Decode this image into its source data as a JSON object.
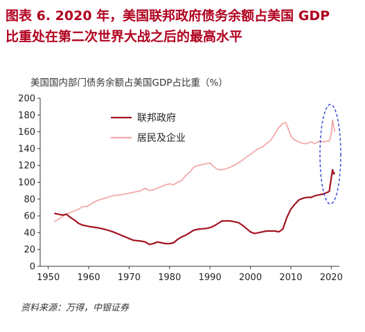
{
  "header": {
    "title_line1": "图表 6.  2020 年，美国联邦政府债务余额占美国 GDP",
    "title_line2": "比重处在第二次世界大战之后的最高水平"
  },
  "footer": {
    "source": "资料来源：万得，中银证券"
  },
  "colors": {
    "title": "#b0001e",
    "federal": "#a31020",
    "households": "#f2a8a8",
    "highlight": "#2f3fd4"
  },
  "chart_data": {
    "type": "line",
    "title": "美国国内部门债务余额占美国GDP占比重（%）",
    "xlabel": "",
    "ylabel": "",
    "xlim": [
      1948,
      2022
    ],
    "ylim": [
      0,
      200
    ],
    "x_ticks": [
      1950,
      1960,
      1970,
      1980,
      1990,
      2000,
      2010,
      2020
    ],
    "y_ticks": [
      0,
      20,
      40,
      60,
      80,
      100,
      120,
      140,
      160,
      180,
      200
    ],
    "grid": false,
    "legend_position": "top-left",
    "annotation": "dashed ellipse highlighting 2020",
    "series": [
      {
        "name": "联邦政府",
        "color": "#a31020",
        "points": [
          [
            1951.5,
            63
          ],
          [
            1952.5,
            62
          ],
          [
            1953.5,
            61
          ],
          [
            1954.5,
            62
          ],
          [
            1955.5,
            58
          ],
          [
            1956.5,
            55
          ],
          [
            1957.5,
            51
          ],
          [
            1958.5,
            49
          ],
          [
            1959.5,
            48
          ],
          [
            1960.5,
            47
          ],
          [
            1962,
            46
          ],
          [
            1964,
            44
          ],
          [
            1966,
            41
          ],
          [
            1968,
            37
          ],
          [
            1970,
            33
          ],
          [
            1971,
            31
          ],
          [
            1973,
            30
          ],
          [
            1974,
            29
          ],
          [
            1975,
            26
          ],
          [
            1976,
            27
          ],
          [
            1977,
            29
          ],
          [
            1978,
            28
          ],
          [
            1979,
            27
          ],
          [
            1980,
            27
          ],
          [
            1981,
            28
          ],
          [
            1982,
            32
          ],
          [
            1983,
            35
          ],
          [
            1984,
            37
          ],
          [
            1985,
            40
          ],
          [
            1986,
            43
          ],
          [
            1987,
            44
          ],
          [
            1989,
            45
          ],
          [
            1990,
            46
          ],
          [
            1991,
            48
          ],
          [
            1992,
            51
          ],
          [
            1993,
            54
          ],
          [
            1994,
            54
          ],
          [
            1995,
            54
          ],
          [
            1996,
            53
          ],
          [
            1997,
            52
          ],
          [
            1998,
            49
          ],
          [
            1999,
            45
          ],
          [
            2000,
            41
          ],
          [
            2001,
            39
          ],
          [
            2002,
            40
          ],
          [
            2003,
            41
          ],
          [
            2004,
            42
          ],
          [
            2005,
            42
          ],
          [
            2006,
            42
          ],
          [
            2007,
            41
          ],
          [
            2008,
            44
          ],
          [
            2009,
            58
          ],
          [
            2010,
            68
          ],
          [
            2011,
            74
          ],
          [
            2012,
            79
          ],
          [
            2013,
            81
          ],
          [
            2014,
            82
          ],
          [
            2015,
            82
          ],
          [
            2016,
            84
          ],
          [
            2017,
            85
          ],
          [
            2018,
            86
          ],
          [
            2019,
            88
          ],
          [
            2019.5,
            89
          ],
          [
            2020,
            105
          ],
          [
            2020.3,
            115
          ],
          [
            2020.6,
            110
          ],
          [
            2020.9,
            111
          ]
        ]
      },
      {
        "name": "居民及企业",
        "color": "#f2a8a8",
        "points": [
          [
            1951.5,
            53
          ],
          [
            1952.5,
            56
          ],
          [
            1953.5,
            59
          ],
          [
            1954.5,
            62
          ],
          [
            1955.5,
            64
          ],
          [
            1956.5,
            66
          ],
          [
            1957.5,
            68
          ],
          [
            1958.5,
            71
          ],
          [
            1959.5,
            71
          ],
          [
            1960.5,
            74
          ],
          [
            1962,
            78
          ],
          [
            1964,
            81
          ],
          [
            1966,
            84
          ],
          [
            1968,
            85
          ],
          [
            1970,
            87
          ],
          [
            1971,
            88
          ],
          [
            1972,
            89
          ],
          [
            1973,
            90
          ],
          [
            1974,
            93
          ],
          [
            1975,
            90
          ],
          [
            1976,
            91
          ],
          [
            1977,
            93
          ],
          [
            1978,
            95
          ],
          [
            1979,
            97
          ],
          [
            1980,
            98
          ],
          [
            1981,
            97
          ],
          [
            1982,
            100
          ],
          [
            1983,
            102
          ],
          [
            1984,
            108
          ],
          [
            1985,
            112
          ],
          [
            1986,
            118
          ],
          [
            1987,
            120
          ],
          [
            1988,
            121
          ],
          [
            1989,
            122
          ],
          [
            1990,
            123
          ],
          [
            1991,
            118
          ],
          [
            1992,
            115
          ],
          [
            1993,
            115
          ],
          [
            1994,
            116
          ],
          [
            1995,
            118
          ],
          [
            1996,
            120
          ],
          [
            1997,
            123
          ],
          [
            1998,
            126
          ],
          [
            1999,
            130
          ],
          [
            2000,
            133
          ],
          [
            2001,
            137
          ],
          [
            2002,
            140
          ],
          [
            2003,
            142
          ],
          [
            2004,
            146
          ],
          [
            2005,
            150
          ],
          [
            2006,
            157
          ],
          [
            2007,
            165
          ],
          [
            2008,
            170
          ],
          [
            2008.7,
            171
          ],
          [
            2009.5,
            162
          ],
          [
            2010,
            155
          ],
          [
            2011,
            150
          ],
          [
            2012,
            148
          ],
          [
            2013,
            146
          ],
          [
            2014,
            146
          ],
          [
            2015,
            148
          ],
          [
            2016,
            146
          ],
          [
            2017,
            149
          ],
          [
            2018,
            148
          ],
          [
            2019,
            149
          ],
          [
            2019.5,
            149
          ],
          [
            2020,
            157
          ],
          [
            2020.3,
            174
          ],
          [
            2020.6,
            166
          ],
          [
            2020.9,
            160
          ]
        ]
      }
    ]
  }
}
